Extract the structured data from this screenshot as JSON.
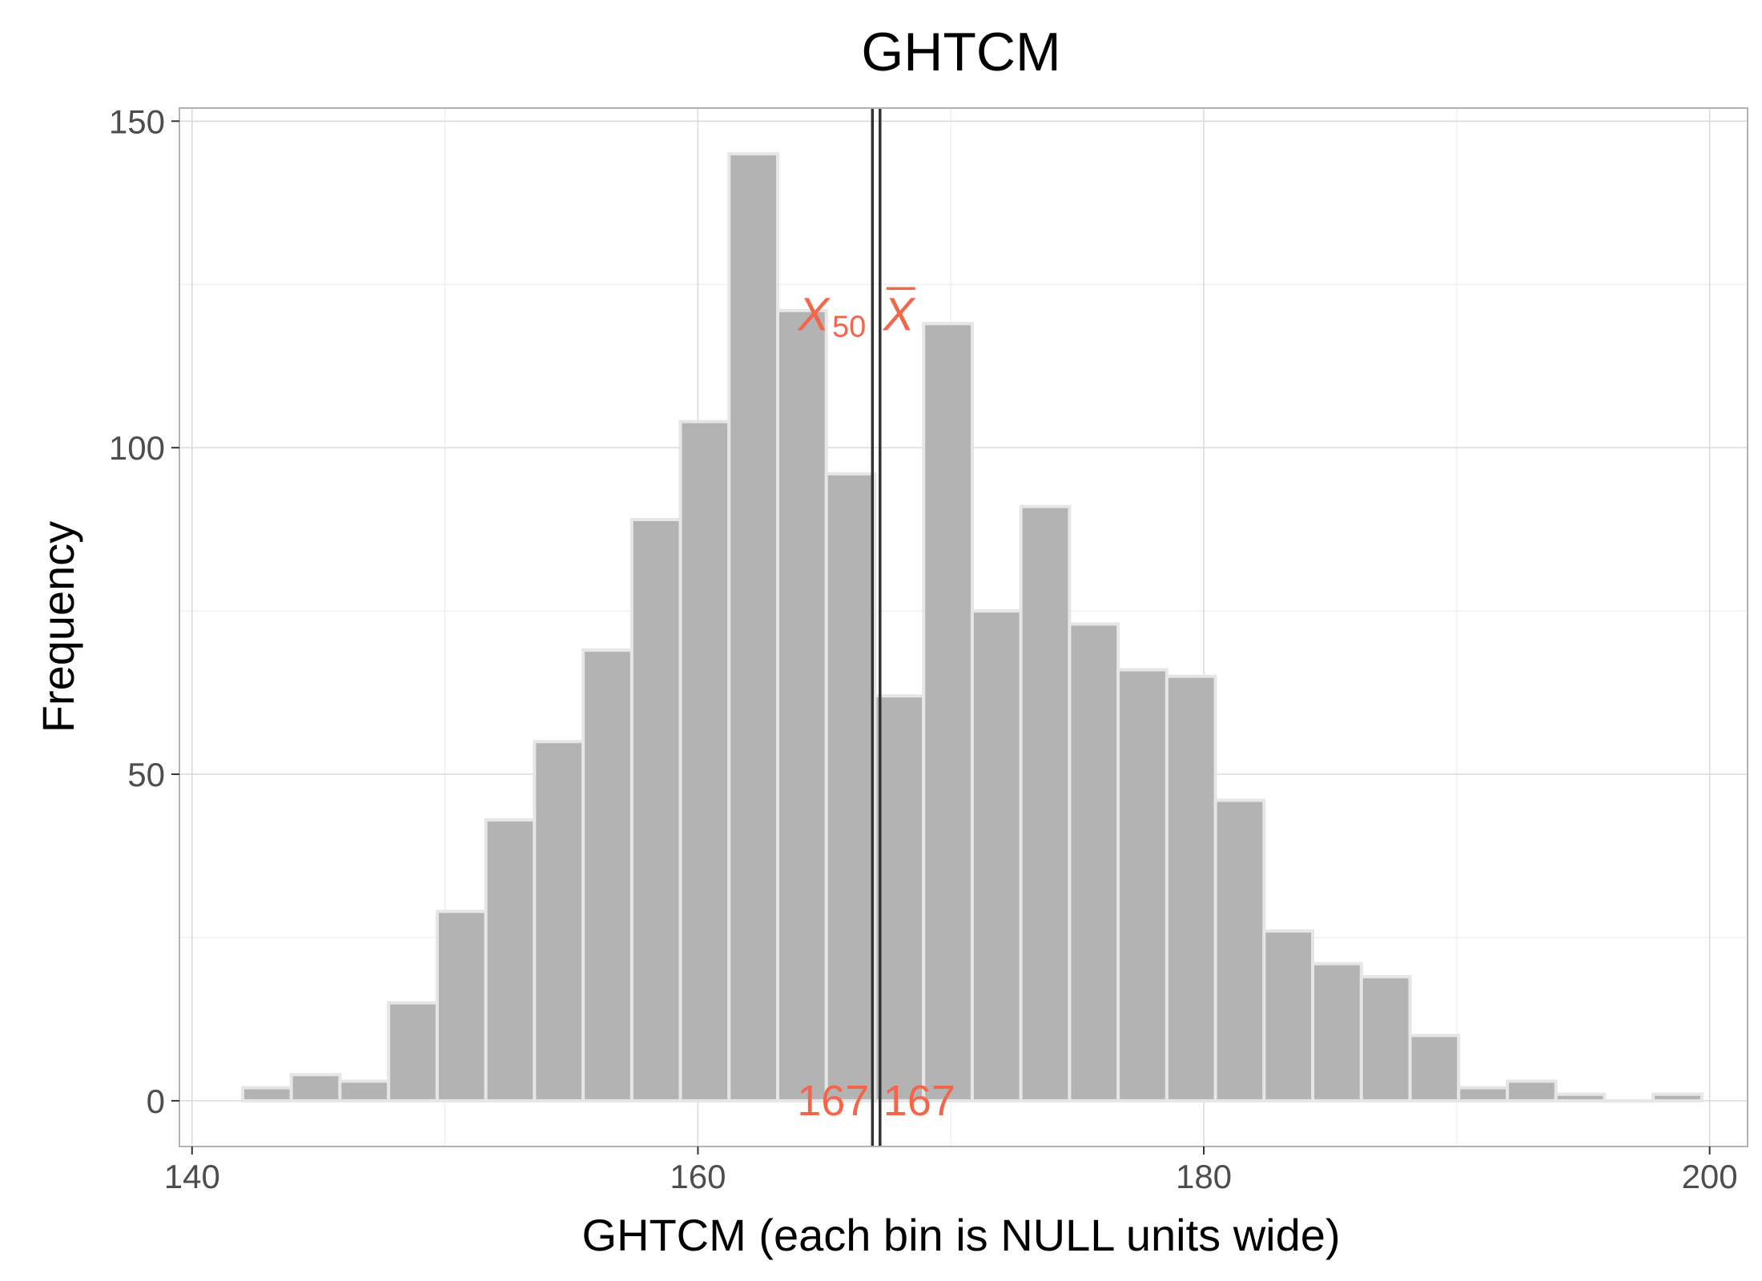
{
  "chart_data": {
    "type": "bar",
    "title": "GHTCM",
    "xlabel": "GHTCM (each bin is NULL units wide)",
    "ylabel": "Frequency",
    "xlim": [
      139.5,
      201.5
    ],
    "ylim": [
      -7,
      152
    ],
    "x_ticks": [
      140,
      160,
      180,
      200
    ],
    "y_ticks": [
      0,
      50,
      100,
      150
    ],
    "grid": true,
    "bin_width": 1.9231,
    "bins": [
      {
        "start": 142.0,
        "count": 2
      },
      {
        "start": 143.9231,
        "count": 4
      },
      {
        "start": 145.8462,
        "count": 3
      },
      {
        "start": 147.7692,
        "count": 15
      },
      {
        "start": 149.6923,
        "count": 29
      },
      {
        "start": 151.6154,
        "count": 43
      },
      {
        "start": 153.5385,
        "count": 55
      },
      {
        "start": 155.4615,
        "count": 69
      },
      {
        "start": 157.3846,
        "count": 89
      },
      {
        "start": 159.3077,
        "count": 104
      },
      {
        "start": 161.2308,
        "count": 145
      },
      {
        "start": 163.1538,
        "count": 121
      },
      {
        "start": 165.0769,
        "count": 96
      },
      {
        "start": 167.0,
        "count": 62
      },
      {
        "start": 168.9231,
        "count": 119
      },
      {
        "start": 170.8462,
        "count": 75
      },
      {
        "start": 172.7692,
        "count": 91
      },
      {
        "start": 174.6923,
        "count": 73
      },
      {
        "start": 176.6154,
        "count": 66
      },
      {
        "start": 178.5385,
        "count": 65
      },
      {
        "start": 180.4615,
        "count": 46
      },
      {
        "start": 182.3846,
        "count": 26
      },
      {
        "start": 184.3077,
        "count": 21
      },
      {
        "start": 186.2308,
        "count": 19
      },
      {
        "start": 188.1538,
        "count": 10
      },
      {
        "start": 190.0769,
        "count": 2
      },
      {
        "start": 192.0,
        "count": 3
      },
      {
        "start": 193.9231,
        "count": 1
      },
      {
        "start": 195.8462,
        "count": 0
      },
      {
        "start": 197.7692,
        "count": 1
      }
    ],
    "reference_lines": [
      {
        "x": 166.9,
        "symbol": "X",
        "subscript": "50",
        "value_label": "167"
      },
      {
        "x": 167.2,
        "symbol": "X",
        "overline": true,
        "value_label": "167"
      }
    ],
    "colors": {
      "bar_fill": "#b3b3b3",
      "bar_stroke": "#e6e6e6",
      "annotation": "#f4664a",
      "line": "#333333",
      "grid_major": "#d9d9d9",
      "grid_minor": "#ebebeb",
      "panel_border": "#b3b3b3"
    }
  }
}
